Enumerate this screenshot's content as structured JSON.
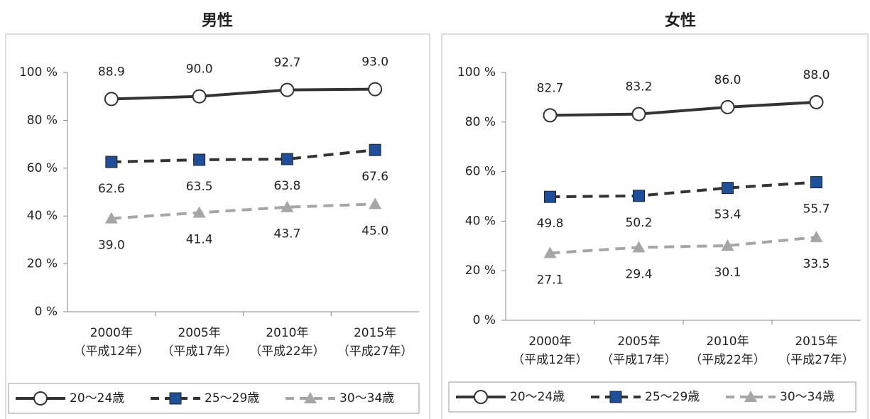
{
  "chart_data": [
    {
      "type": "line",
      "title": "男性",
      "categories": [
        "2000年\n（平成12年）",
        "2005年\n（平成17年）",
        "2010年\n（平成22年）",
        "2015年\n（平成27年）"
      ],
      "ylim": [
        0,
        100
      ],
      "yticks": [
        {
          "value": 0,
          "label": "0 %"
        },
        {
          "value": 20,
          "label": "20 %"
        },
        {
          "value": 40,
          "label": "40 %"
        },
        {
          "value": 60,
          "label": "60 %"
        },
        {
          "value": 80,
          "label": "80 %"
        },
        {
          "value": 100,
          "label": "100 %"
        }
      ],
      "legend": "bottom",
      "series": [
        {
          "name": "20～24歳",
          "color": "#333333",
          "values": [
            88.9,
            90.0,
            92.7,
            93.0
          ],
          "value_labels": [
            "88.9",
            "90.0",
            "92.7",
            "93.0"
          ]
        },
        {
          "name": "25～29歳",
          "color": "#1f4e9a",
          "values": [
            62.6,
            63.5,
            63.8,
            67.6
          ],
          "value_labels": [
            "62.6",
            "63.5",
            "63.8",
            "67.6"
          ]
        },
        {
          "name": "30～34歳",
          "color": "#a6a6a6",
          "values": [
            39.0,
            41.4,
            43.7,
            45.0
          ],
          "value_labels": [
            "39.0",
            "41.4",
            "43.7",
            "45.0"
          ]
        }
      ]
    },
    {
      "type": "line",
      "title": "女性",
      "categories": [
        "2000年\n（平成12年）",
        "2005年\n（平成17年）",
        "2010年\n（平成22年）",
        "2015年\n（平成27年）"
      ],
      "ylim": [
        0,
        100
      ],
      "yticks": [
        {
          "value": 0,
          "label": "0 %"
        },
        {
          "value": 20,
          "label": "20 %"
        },
        {
          "value": 40,
          "label": "40 %"
        },
        {
          "value": 60,
          "label": "60 %"
        },
        {
          "value": 80,
          "label": "80 %"
        },
        {
          "value": 100,
          "label": "100 %"
        }
      ],
      "legend": "bottom",
      "series": [
        {
          "name": "20～24歳",
          "color": "#333333",
          "values": [
            82.7,
            83.2,
            86.0,
            88.0
          ],
          "value_labels": [
            "82.7",
            "83.2",
            "86.0",
            "88.0"
          ]
        },
        {
          "name": "25～29歳",
          "color": "#1f4e9a",
          "values": [
            49.8,
            50.2,
            53.4,
            55.7
          ],
          "value_labels": [
            "49.8",
            "50.2",
            "53.4",
            "55.7"
          ]
        },
        {
          "name": "30～34歳",
          "color": "#a6a6a6",
          "values": [
            27.1,
            29.4,
            30.1,
            33.5
          ],
          "value_labels": [
            "27.1",
            "29.4",
            "30.1",
            "33.5"
          ]
        }
      ]
    }
  ]
}
